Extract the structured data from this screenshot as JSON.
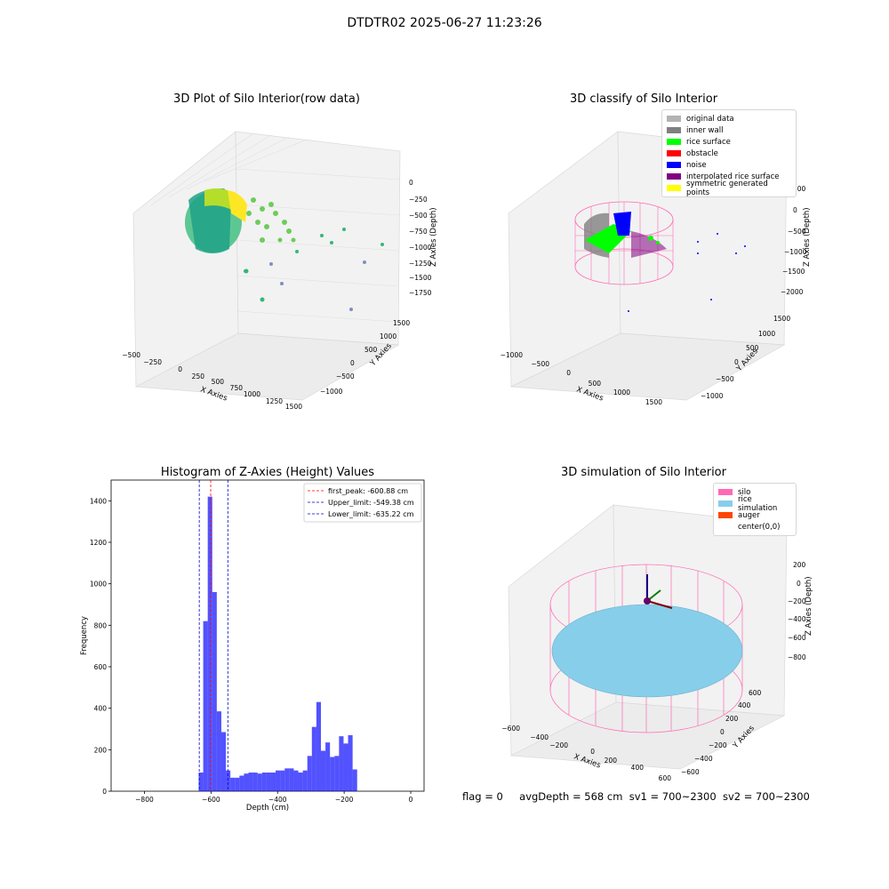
{
  "suptitle": "DTDTR02 2025-06-27 11:23:26",
  "panels": {
    "raw": {
      "title": "3D Plot of Silo Interior(row data)",
      "xlabel": "X Axies",
      "ylabel": "Y Axies",
      "zlabel": "Z Axies (Depth)",
      "xticks": [
        "−500",
        "−250",
        "0",
        "250",
        "500",
        "750",
        "1000",
        "1250",
        "1500"
      ],
      "yticks": [
        "1500",
        "1000",
        "500",
        "0",
        "−500",
        "−1000"
      ],
      "zticks": [
        "0",
        "−250",
        "−500",
        "−750",
        "−1000",
        "−1250",
        "−1500",
        "−1750"
      ]
    },
    "classify": {
      "title": "3D classify of Silo Interior",
      "xlabel": "X Axies",
      "ylabel": "Y Axies",
      "zlabel": "Z Axies (Depth)",
      "xticks": [
        "−1000",
        "−500",
        "0",
        "500",
        "1000",
        "1500"
      ],
      "yticks": [
        "1500",
        "1000",
        "500",
        "0",
        "−500",
        "−1000"
      ],
      "zticks": [
        "500",
        "0",
        "−500",
        "−1000",
        "−1500",
        "−2000"
      ],
      "legend": [
        {
          "label": "original data",
          "color": "#b3b3b3"
        },
        {
          "label": "inner wall",
          "color": "#808080"
        },
        {
          "label": "rice surface",
          "color": "#00ff00"
        },
        {
          "label": "obstacle",
          "color": "#ff0000"
        },
        {
          "label": "noise",
          "color": "#0000ff"
        },
        {
          "label": "interpolated rice surface",
          "color": "#800080"
        },
        {
          "label": "symmetric generated points",
          "color": "#ffff00"
        }
      ]
    },
    "simulation": {
      "title": "3D simulation of Silo Interior",
      "xlabel": "X Axies",
      "ylabel": "Y Axies",
      "zlabel": "Z Axies (Depth)",
      "xticks": [
        "−600",
        "−400",
        "−200",
        "0",
        "200",
        "400",
        "600"
      ],
      "yticks": [
        "600",
        "400",
        "200",
        "0",
        "−200",
        "−400",
        "−600"
      ],
      "zticks": [
        "200",
        "0",
        "−200",
        "−400",
        "−600",
        "−800"
      ],
      "legend": [
        {
          "label": "silo",
          "color": "#ff69b4"
        },
        {
          "label": "rice simulation",
          "color": "#87ceeb"
        },
        {
          "label": "auger",
          "color": "#ff4500"
        },
        {
          "label": "center(0,0)",
          "color": "#ffffff"
        }
      ]
    }
  },
  "status": {
    "flag": "flag = 0",
    "avg": "avgDepth = 568 cm",
    "sv1": "sv1 = 700~2300",
    "sv2": "sv2 = 700~2300"
  },
  "colors": {
    "hist": "#0000ff",
    "peak": "#ff0000",
    "limit": "#0000cc",
    "silo": "#ff69b4",
    "rice": "#87ceeb"
  },
  "chart_data": [
    {
      "type": "bar",
      "title": "Histogram of Z-Axies (Height) Values",
      "xlabel": "Depth (cm)",
      "ylabel": "Frequency",
      "xlim": [
        -900,
        40
      ],
      "ylim": [
        0,
        1500
      ],
      "xticks": [
        -800,
        -600,
        -400,
        -200,
        0
      ],
      "xtick_labels": [
        "−800",
        "−600",
        "−400",
        "−200",
        "0"
      ],
      "yticks": [
        0,
        200,
        400,
        600,
        800,
        1000,
        1200,
        1400
      ],
      "bin_start": -637,
      "bin_width": 13.6,
      "values": [
        90,
        820,
        1420,
        960,
        385,
        285,
        100,
        65,
        65,
        75,
        85,
        90,
        90,
        85,
        90,
        90,
        90,
        100,
        100,
        110,
        110,
        100,
        90,
        100,
        170,
        310,
        430,
        195,
        235,
        165,
        170,
        265,
        230,
        270,
        105
      ],
      "lines": [
        {
          "label": "first_peak: -600.88 cm",
          "x": -600.88,
          "color": "#ff0000"
        },
        {
          "label": "Upper_limit: -549.38 cm",
          "x": -549.38,
          "color": "#0000cc"
        },
        {
          "label": "Lower_limit: -635.22 cm",
          "x": -635.22,
          "color": "#0000cc"
        }
      ],
      "legend_position": "top-right"
    }
  ]
}
